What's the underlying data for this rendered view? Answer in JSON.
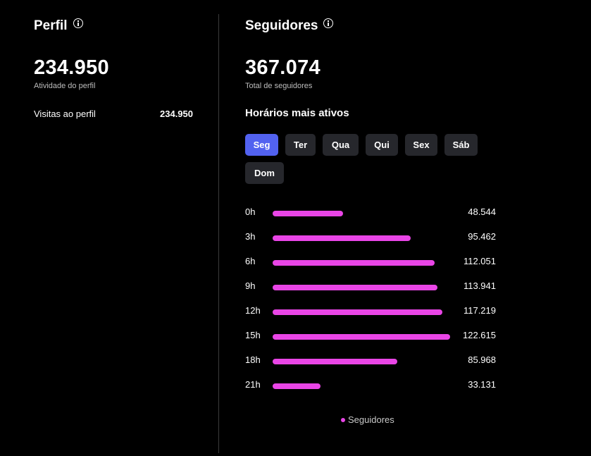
{
  "profile": {
    "title": "Perfil",
    "total": "234.950",
    "caption": "Atividade do perfil",
    "visits_label": "Visitas ao perfil",
    "visits_value": "234.950"
  },
  "followers": {
    "title": "Seguidores",
    "total": "367.074",
    "caption": "Total de seguidores",
    "active_heading": "Horários mais ativos",
    "selected_day": "Seg",
    "days": [
      "Seg",
      "Ter",
      "Qua",
      "Qui",
      "Sex",
      "Sáb",
      "Dom"
    ]
  },
  "chart_data": {
    "type": "bar",
    "orientation": "horizontal",
    "categories": [
      "0h",
      "3h",
      "6h",
      "9h",
      "12h",
      "15h",
      "18h",
      "21h"
    ],
    "series": [
      {
        "name": "Seguidores",
        "values": [
          48544,
          95462,
          112051,
          113941,
          117219,
          122615,
          85968,
          33131
        ],
        "labels": [
          "48.544",
          "95.462",
          "112.051",
          "113.941",
          "117.219",
          "122.615",
          "85.968",
          "33.131"
        ]
      }
    ],
    "legend": "bottom-center",
    "colors": {
      "bar": "#e945e6",
      "active_tab": "#5262f0",
      "tab": "#26272c"
    }
  }
}
